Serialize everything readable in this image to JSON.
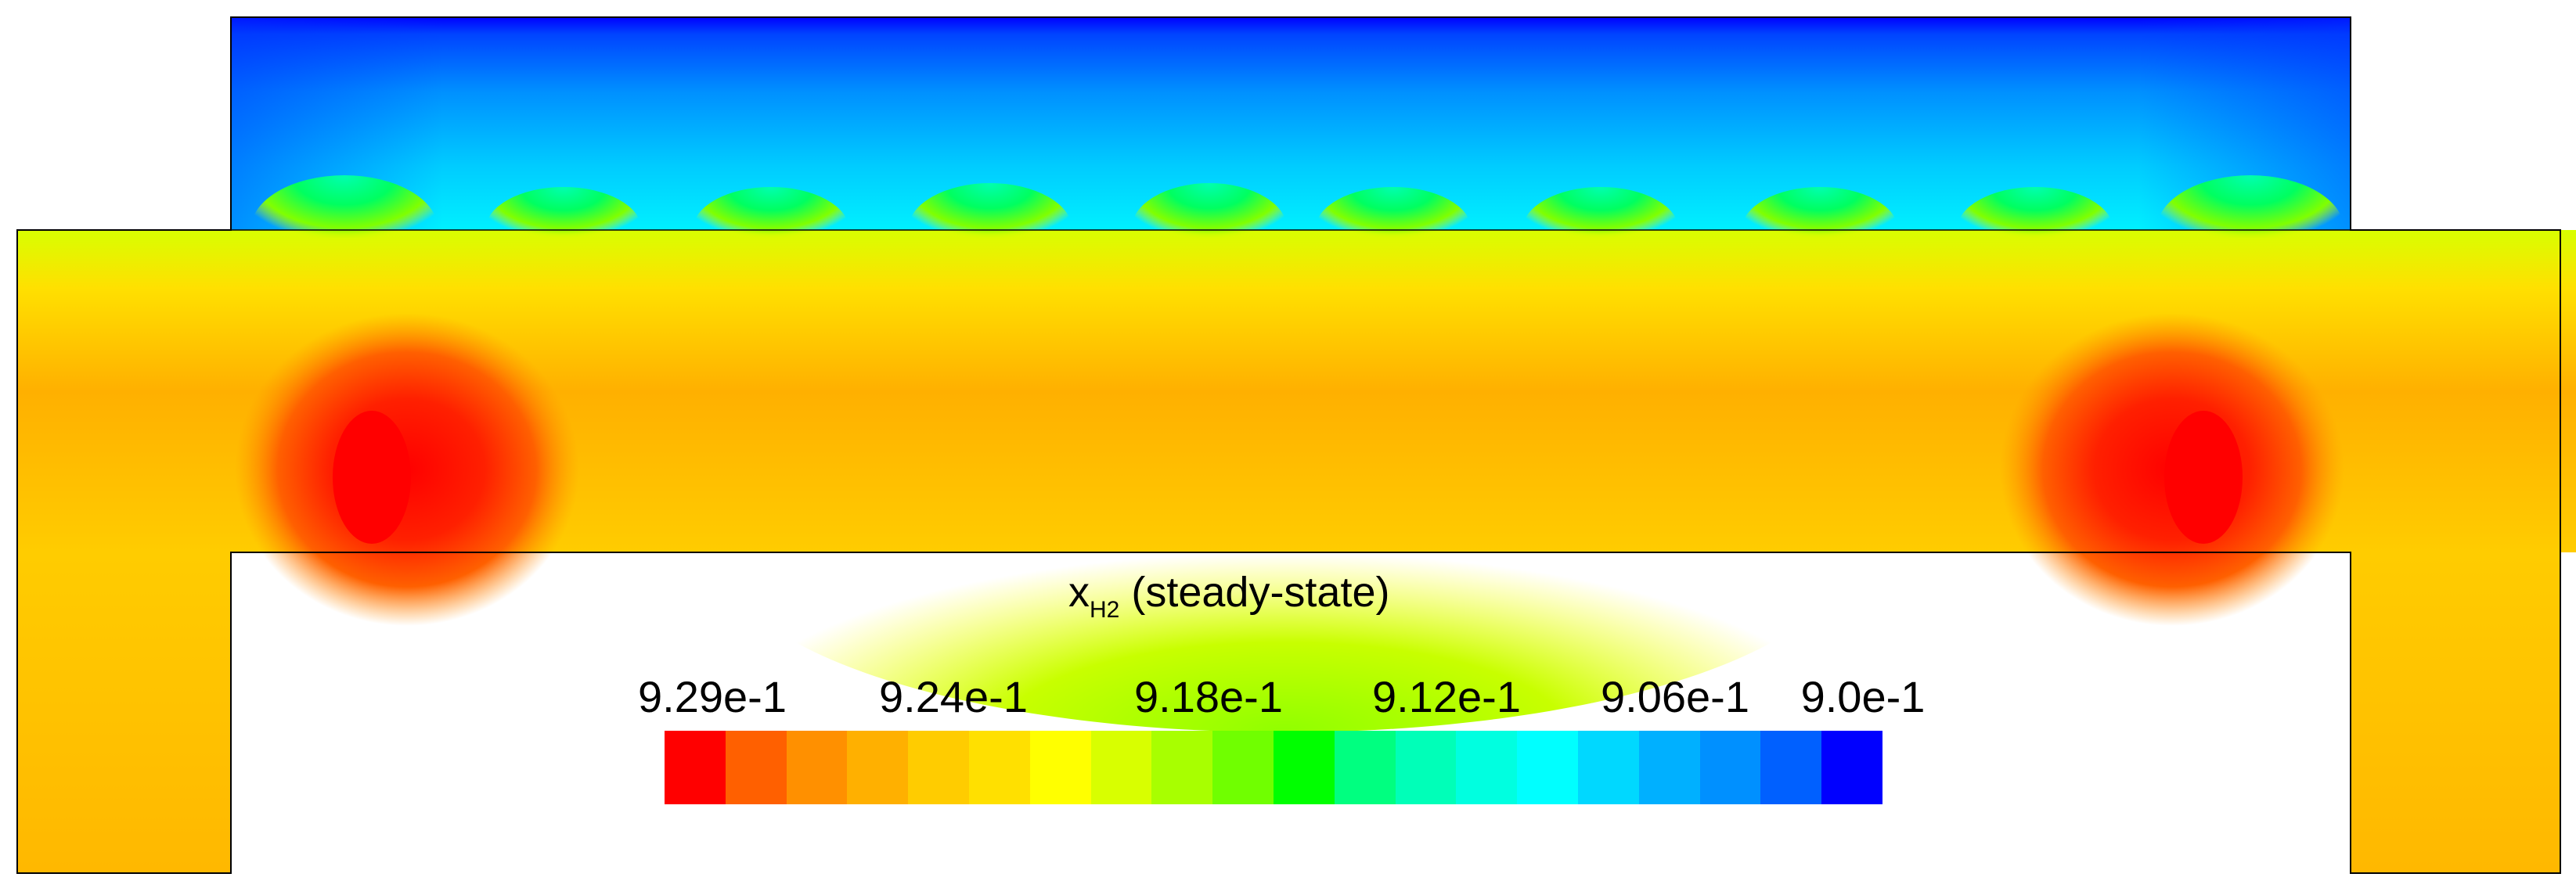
{
  "title": {
    "var": "x",
    "subscript": "H2",
    "suffix": " (steady-state)"
  },
  "legend": {
    "tick_labels": [
      "9.29e-1",
      "9.24e-1",
      "9.18e-1",
      "9.12e-1",
      "9.06e-1",
      "9.0e-1"
    ],
    "colors": [
      "#ff0000",
      "#ff6000",
      "#ff9000",
      "#ffb000",
      "#ffcc00",
      "#ffe000",
      "#ffff00",
      "#d8ff00",
      "#a8ff00",
      "#70ff00",
      "#00ff00",
      "#00ff80",
      "#00ffb8",
      "#00ffe0",
      "#00ffff",
      "#00d8ff",
      "#00b0ff",
      "#0090ff",
      "#0060ff",
      "#0000ff"
    ]
  }
}
